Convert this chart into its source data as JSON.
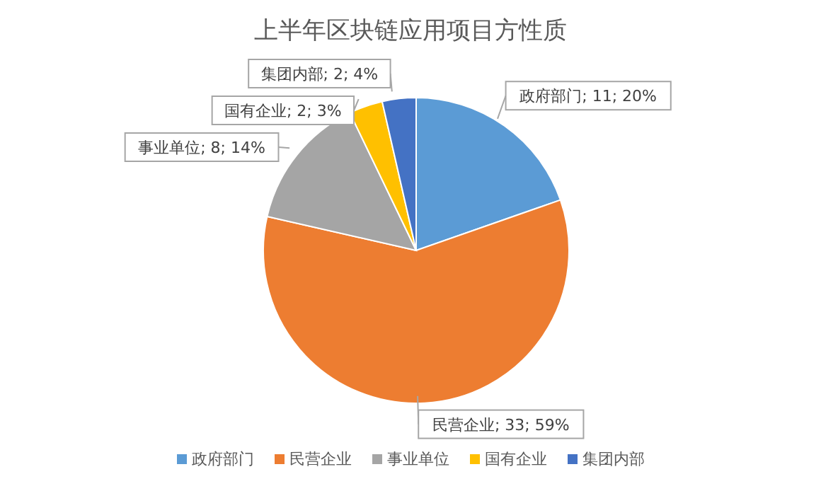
{
  "chart_data": {
    "type": "pie",
    "title": "上半年区块链应用项目方性质",
    "categories": [
      "政府部门",
      "民营企业",
      "事业单位",
      "国有企业",
      "集团内部"
    ],
    "values": [
      11,
      33,
      8,
      2,
      2
    ],
    "colors": [
      "#5b9bd5",
      "#ed7d31",
      "#a5a5a5",
      "#ffc000",
      "#4472c4"
    ],
    "value_labels": [
      "政府部门; 11; 20%",
      "民营企业; 33; 59%",
      "事业单位; 8; 14%",
      "国有企业; 2; 3%",
      "集团内部; 2; 4%"
    ],
    "legend": "bottom"
  }
}
